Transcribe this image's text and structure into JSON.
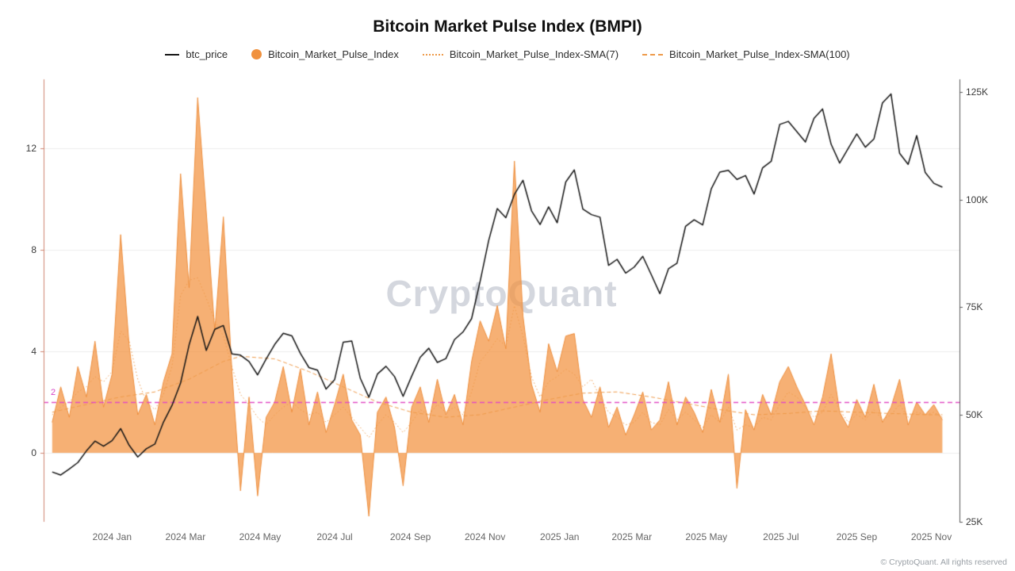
{
  "title": "Bitcoin Market Pulse Index (BMPI)",
  "watermark": "CryptoQuant",
  "footer": "© CryptoQuant. All rights reserved",
  "legend": [
    {
      "label": "btc_price",
      "type": "line",
      "color": "#141414"
    },
    {
      "label": "Bitcoin_Market_Pulse_Index",
      "type": "area",
      "color": "#f0913e"
    },
    {
      "label": "Bitcoin_Market_Pulse_Index-SMA(7)",
      "type": "dotted",
      "color": "#ee9a4a"
    },
    {
      "label": "Bitcoin_Market_Pulse_Index-SMA(100)",
      "type": "dashed",
      "color": "#ee9a4a"
    }
  ],
  "chart_data": {
    "type": "line+area",
    "title": "Bitcoin Market Pulse Index (BMPI)",
    "start_date": "2023-11-13",
    "interval_days": 7,
    "x_domain": [
      "2023-11-06",
      "2025-11-24"
    ],
    "x_ticks": [
      {
        "date": "2024-01-01",
        "label": "2024 Jan"
      },
      {
        "date": "2024-03-01",
        "label": "2024 Mar"
      },
      {
        "date": "2024-05-01",
        "label": "2024 May"
      },
      {
        "date": "2024-07-01",
        "label": "2024 Jul"
      },
      {
        "date": "2024-09-01",
        "label": "2024 Sep"
      },
      {
        "date": "2024-11-01",
        "label": "2024 Nov"
      },
      {
        "date": "2025-01-01",
        "label": "2025 Jan"
      },
      {
        "date": "2025-03-01",
        "label": "2025 Mar"
      },
      {
        "date": "2025-05-01",
        "label": "2025 May"
      },
      {
        "date": "2025-07-01",
        "label": "2025 Jul"
      },
      {
        "date": "2025-09-01",
        "label": "2025 Sep"
      },
      {
        "date": "2025-11-01",
        "label": "2025 Nov"
      }
    ],
    "left_axis": {
      "ticks": [
        0,
        4,
        8,
        12
      ],
      "range": [
        -2.72,
        14.72
      ],
      "grid": true
    },
    "right_axis": {
      "tick_labels": [
        "25K",
        "50K",
        "75K",
        "100K",
        "125K"
      ],
      "tick_values": [
        25,
        50,
        75,
        100,
        125
      ],
      "range": [
        25,
        128
      ],
      "unit": "thousand USD"
    },
    "threshold": {
      "value": 2,
      "label": "2",
      "color": "#e24ac4"
    },
    "series": [
      {
        "name": "btc_price",
        "axis": "right",
        "style": "solid",
        "color": "#141414",
        "values": [
          36.6,
          35.9,
          37.3,
          38.8,
          41.5,
          43.8,
          42.6,
          43.9,
          46.7,
          42.8,
          40.1,
          42.0,
          43.1,
          48.2,
          52.1,
          57.3,
          66.2,
          72.8,
          64.9,
          69.8,
          70.7,
          64.1,
          63.8,
          62.3,
          59.2,
          62.9,
          66.3,
          68.9,
          68.3,
          64.2,
          60.9,
          60.3,
          55.9,
          58.1,
          66.8,
          67.1,
          58.4,
          54.0,
          59.4,
          61.2,
          58.8,
          54.2,
          58.9,
          63.3,
          65.4,
          62.1,
          63.0,
          67.4,
          69.2,
          72.3,
          81.0,
          90.5,
          97.9,
          95.8,
          101.2,
          104.5,
          97.4,
          94.2,
          98.3,
          94.6,
          104.1,
          106.9,
          97.8,
          96.5,
          95.9,
          84.7,
          86.1,
          82.9,
          84.3,
          86.8,
          82.5,
          78.1,
          83.9,
          85.2,
          93.8,
          95.3,
          94.1,
          102.5,
          106.4,
          106.8,
          104.7,
          105.6,
          101.3,
          107.4,
          108.9,
          117.5,
          118.2,
          115.8,
          113.4,
          118.9,
          121.1,
          112.9,
          108.5,
          111.9,
          115.3,
          112.2,
          114.1,
          122.5,
          124.6,
          110.8,
          108.2,
          114.9,
          106.3,
          103.8,
          102.9
        ]
      },
      {
        "name": "Bitcoin_Market_Pulse_Index",
        "axis": "left",
        "style": "area",
        "color": "#ed8d3b",
        "fill": "rgba(243,146,62,0.72)",
        "values": [
          1.2,
          2.6,
          1.4,
          3.4,
          2.2,
          4.4,
          1.8,
          3.1,
          8.6,
          4.2,
          1.5,
          2.3,
          1.1,
          2.8,
          3.9,
          11.0,
          6.5,
          14.0,
          9.5,
          4.8,
          9.3,
          3.2,
          -1.5,
          2.2,
          -1.7,
          1.4,
          2.0,
          3.4,
          1.6,
          3.3,
          1.1,
          2.4,
          0.8,
          1.9,
          3.1,
          1.3,
          0.7,
          -2.5,
          1.6,
          2.2,
          1.0,
          -1.3,
          1.8,
          2.6,
          1.2,
          2.9,
          1.5,
          2.3,
          1.1,
          3.6,
          5.2,
          4.4,
          5.8,
          4.1,
          11.5,
          5.4,
          2.7,
          1.6,
          4.3,
          3.2,
          4.6,
          4.7,
          2.1,
          1.4,
          2.6,
          1.0,
          1.8,
          0.7,
          1.5,
          2.4,
          0.9,
          1.3,
          2.8,
          1.1,
          2.2,
          1.6,
          0.8,
          2.5,
          1.2,
          3.1,
          -1.4,
          1.7,
          0.9,
          2.3,
          1.5,
          2.8,
          3.4,
          2.6,
          1.9,
          1.1,
          2.2,
          3.9,
          1.6,
          1.0,
          2.1,
          1.4,
          2.7,
          1.2,
          1.8,
          2.9,
          1.1,
          2.0,
          1.5,
          1.9,
          1.3
        ]
      },
      {
        "name": "Bitcoin_Market_Pulse_Index-SMA(7)",
        "axis": "left",
        "style": "dotted",
        "color": "#ee9a4a",
        "values": [
          1.5,
          1.8,
          2.0,
          2.4,
          2.6,
          3.0,
          2.8,
          3.2,
          4.8,
          4.4,
          2.9,
          2.0,
          1.7,
          2.3,
          3.4,
          6.2,
          6.8,
          6.9,
          6.1,
          5.2,
          4.6,
          3.4,
          2.3,
          1.9,
          1.4,
          1.1,
          1.5,
          1.8,
          2.0,
          1.7,
          1.5,
          1.6,
          1.2,
          1.5,
          1.8,
          1.4,
          1.0,
          0.6,
          1.1,
          1.5,
          1.2,
          0.8,
          1.2,
          1.7,
          1.5,
          1.9,
          1.6,
          1.8,
          1.5,
          2.4,
          3.6,
          4.0,
          4.5,
          4.2,
          5.8,
          4.6,
          3.0,
          2.2,
          2.8,
          3.0,
          3.3,
          3.1,
          2.6,
          2.9,
          2.2,
          1.6,
          1.4,
          1.1,
          1.2,
          1.6,
          1.2,
          1.1,
          1.7,
          1.3,
          1.6,
          1.3,
          1.0,
          1.5,
          1.2,
          1.8,
          0.9,
          1.1,
          1.0,
          1.4,
          1.3,
          1.9,
          2.4,
          2.2,
          1.8,
          1.4,
          1.6,
          2.3,
          1.7,
          1.2,
          1.5,
          1.3,
          1.7,
          1.3,
          1.5,
          1.9,
          1.4,
          1.6,
          1.5,
          1.6,
          1.4
        ]
      },
      {
        "name": "Bitcoin_Market_Pulse_Index-SMA(100)",
        "axis": "left",
        "style": "dashed",
        "color": "#ee9a4a",
        "values": [
          1.6,
          1.68,
          1.75,
          1.83,
          1.9,
          1.98,
          2.05,
          2.13,
          2.2,
          2.25,
          2.3,
          2.35,
          2.4,
          2.53,
          2.65,
          2.78,
          2.9,
          3.08,
          3.25,
          3.43,
          3.6,
          3.7,
          3.8,
          3.78,
          3.75,
          3.73,
          3.7,
          3.58,
          3.45,
          3.33,
          3.2,
          3.05,
          2.9,
          2.75,
          2.6,
          2.45,
          2.3,
          2.15,
          2.0,
          1.9,
          1.8,
          1.7,
          1.6,
          1.55,
          1.5,
          1.45,
          1.4,
          1.43,
          1.45,
          1.48,
          1.5,
          1.58,
          1.65,
          1.73,
          1.8,
          1.88,
          1.95,
          2.03,
          2.1,
          2.16,
          2.23,
          2.29,
          2.35,
          2.36,
          2.38,
          2.39,
          2.4,
          2.35,
          2.3,
          2.25,
          2.2,
          2.14,
          2.08,
          2.01,
          1.95,
          1.89,
          1.83,
          1.76,
          1.7,
          1.65,
          1.6,
          1.55,
          1.5,
          1.51,
          1.53,
          1.54,
          1.55,
          1.58,
          1.6,
          1.63,
          1.65,
          1.64,
          1.63,
          1.61,
          1.6,
          1.59,
          1.58,
          1.56,
          1.55,
          1.54,
          1.53,
          1.51,
          1.5,
          1.5,
          1.5
        ]
      }
    ]
  }
}
